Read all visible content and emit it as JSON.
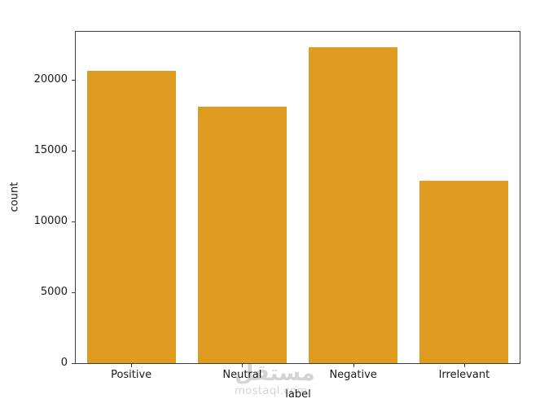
{
  "chart_data": {
    "type": "bar",
    "categories": [
      "Positive",
      "Neutral",
      "Negative",
      "Irrelevant"
    ],
    "values": [
      20650,
      18100,
      22350,
      12900
    ],
    "title": "",
    "xlabel": "label",
    "ylabel": "count",
    "ylim": [
      0,
      23420
    ],
    "yticks": [
      0,
      5000,
      10000,
      15000,
      20000
    ],
    "bar_color": "#DF9C20",
    "bar_width_frac": 0.8,
    "grid": false,
    "legend": "none",
    "axis_color": "#3c3c3c",
    "text_color": "#1a1a1a",
    "background_color": "#ffffff"
  },
  "watermark": {
    "arabic": "مستقل",
    "latin": "mostaql.com",
    "color": "#d4d4d4"
  }
}
